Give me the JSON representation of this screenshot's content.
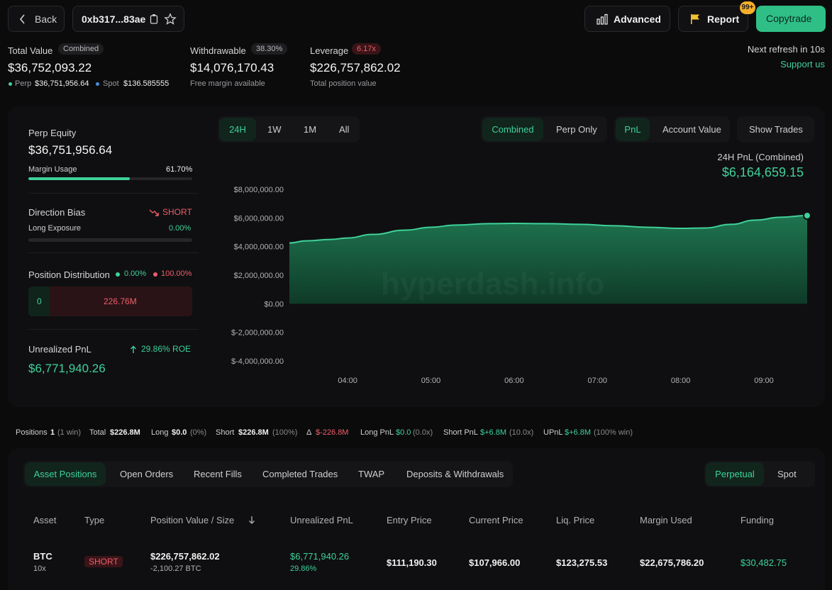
{
  "header": {
    "back_label": "Back",
    "address": "0xb317...83ae",
    "advanced_label": "Advanced",
    "report_label": "Report",
    "report_badge": "99+",
    "copytrade_label": "Copytrade",
    "next_refresh": "Next refresh in 10s",
    "support_label": "Support us"
  },
  "summary": {
    "total_value_label": "Total Value",
    "combined_badge": "Combined",
    "total_value": "$36,752,093.22",
    "perp_label": "Perp",
    "perp_value": "$36,751,956.64",
    "spot_label": "Spot",
    "spot_value": "$136.585555",
    "withdrawable_label": "Withdrawable",
    "withdrawable_pct": "38.30%",
    "withdrawable_value": "$14,076,170.43",
    "withdrawable_sub": "Free margin available",
    "leverage_label": "Leverage",
    "leverage_badge": "6.17x",
    "leverage_value": "$226,757,862.02",
    "leverage_sub": "Total position value"
  },
  "left_panel": {
    "perp_equity_label": "Perp Equity",
    "perp_equity_value": "$36,751,956.64",
    "margin_usage_label": "Margin Usage",
    "margin_usage_value": "61.70%",
    "margin_usage_fraction": 0.617,
    "direction_bias_label": "Direction Bias",
    "direction_bias_value": "SHORT",
    "long_exposure_label": "Long Exposure",
    "long_exposure_value": "0.00%",
    "long_exposure_fraction": 0.0,
    "position_dist_label": "Position Distribution",
    "position_dist_long": "0.00%",
    "position_dist_short": "100.00%",
    "position_dist_long_value": "0",
    "position_dist_short_value": "226.76M",
    "unrealized_label": "Unrealized PnL",
    "unrealized_roe": "29.86% ROE",
    "unrealized_value": "$6,771,940.26"
  },
  "chart_controls": {
    "ranges": [
      "24H",
      "1W",
      "1M",
      "All"
    ],
    "active_range": "24H",
    "modes": [
      "Combined",
      "Perp Only"
    ],
    "active_mode": "Combined",
    "metrics": [
      "PnL",
      "Account Value"
    ],
    "active_metric": "PnL",
    "show_trades_label": "Show Trades",
    "pnl_title": "24H PnL (Combined)",
    "pnl_value": "$6,164,659.15",
    "watermark": "hyperdash.info"
  },
  "chart_data": {
    "type": "area",
    "title": "24H PnL (Combined)",
    "xlabel": "",
    "ylabel": "",
    "x_ticks": [
      "04:00",
      "05:00",
      "06:00",
      "07:00",
      "08:00",
      "09:00"
    ],
    "y_ticks": [
      "$8,000,000.00",
      "$6,000,000.00",
      "$4,000,000.00",
      "$2,000,000.00",
      "$0.00",
      "$-2,000,000.00",
      "$-4,000,000.00"
    ],
    "ylim": [
      -4000000,
      8000000
    ],
    "xlim": [
      3.3,
      9.52
    ],
    "series": [
      {
        "x": [
          3.3,
          3.5,
          3.8,
          4.0,
          4.3,
          4.7,
          5.0,
          5.3,
          5.7,
          6.0,
          6.4,
          6.8,
          7.2,
          7.6,
          8.0,
          8.3,
          8.6,
          8.9,
          9.2,
          9.52
        ],
        "values": [
          4250000,
          4400000,
          4500000,
          4600000,
          4850000,
          5150000,
          5350000,
          5500000,
          5600000,
          5620000,
          5600000,
          5550000,
          5450000,
          5350000,
          5270000,
          5300000,
          5550000,
          5850000,
          6050000,
          6164659.15
        ]
      }
    ],
    "colors": {
      "line": "#3fd19a",
      "fill_top": "#1f7a52",
      "fill_bottom": "#0f3d2a"
    },
    "grid": false
  },
  "stats_bar": {
    "positions_label": "Positions",
    "positions_value": "1",
    "positions_sub": "(1 win)",
    "total_label": "Total",
    "total_value": "$226.8M",
    "long_label": "Long",
    "long_value": "$0.0",
    "long_sub": "(0%)",
    "short_label": "Short",
    "short_value": "$226.8M",
    "short_sub": "(100%)",
    "delta_label": "Δ",
    "delta_value": "$-226.8M",
    "long_pnl_label": "Long PnL",
    "long_pnl_value": "$0.0",
    "long_pnl_sub": "(0.0x)",
    "short_pnl_label": "Short PnL",
    "short_pnl_value": "$+6.8M",
    "short_pnl_sub": "(10.0x)",
    "upnl_label": "UPnL",
    "upnl_value": "$+6.8M",
    "upnl_sub": "(100% win)"
  },
  "positions_tabs": {
    "tabs": [
      "Asset Positions",
      "Open Orders",
      "Recent Fills",
      "Completed Trades",
      "TWAP",
      "Deposits & Withdrawals"
    ],
    "active_tab": "Asset Positions",
    "market_tabs": [
      "Perpetual",
      "Spot"
    ],
    "active_market": "Perpetual"
  },
  "table": {
    "columns": [
      "Asset",
      "Type",
      "Position Value / Size",
      "Unrealized PnL",
      "Entry Price",
      "Current Price",
      "Liq. Price",
      "Margin Used",
      "Funding"
    ],
    "rows": [
      {
        "asset": "BTC",
        "leverage": "10x",
        "type": "SHORT",
        "position_value": "$226,757,862.02",
        "position_size": "-2,100.27 BTC",
        "upnl": "$6,771,940.26",
        "upnl_pct": "29.86%",
        "entry_price": "$111,190.30",
        "current_price": "$107,966.00",
        "liq_price": "$123,275.53",
        "margin_used": "$22,675,786.20",
        "funding": "$30,482.75"
      }
    ]
  }
}
